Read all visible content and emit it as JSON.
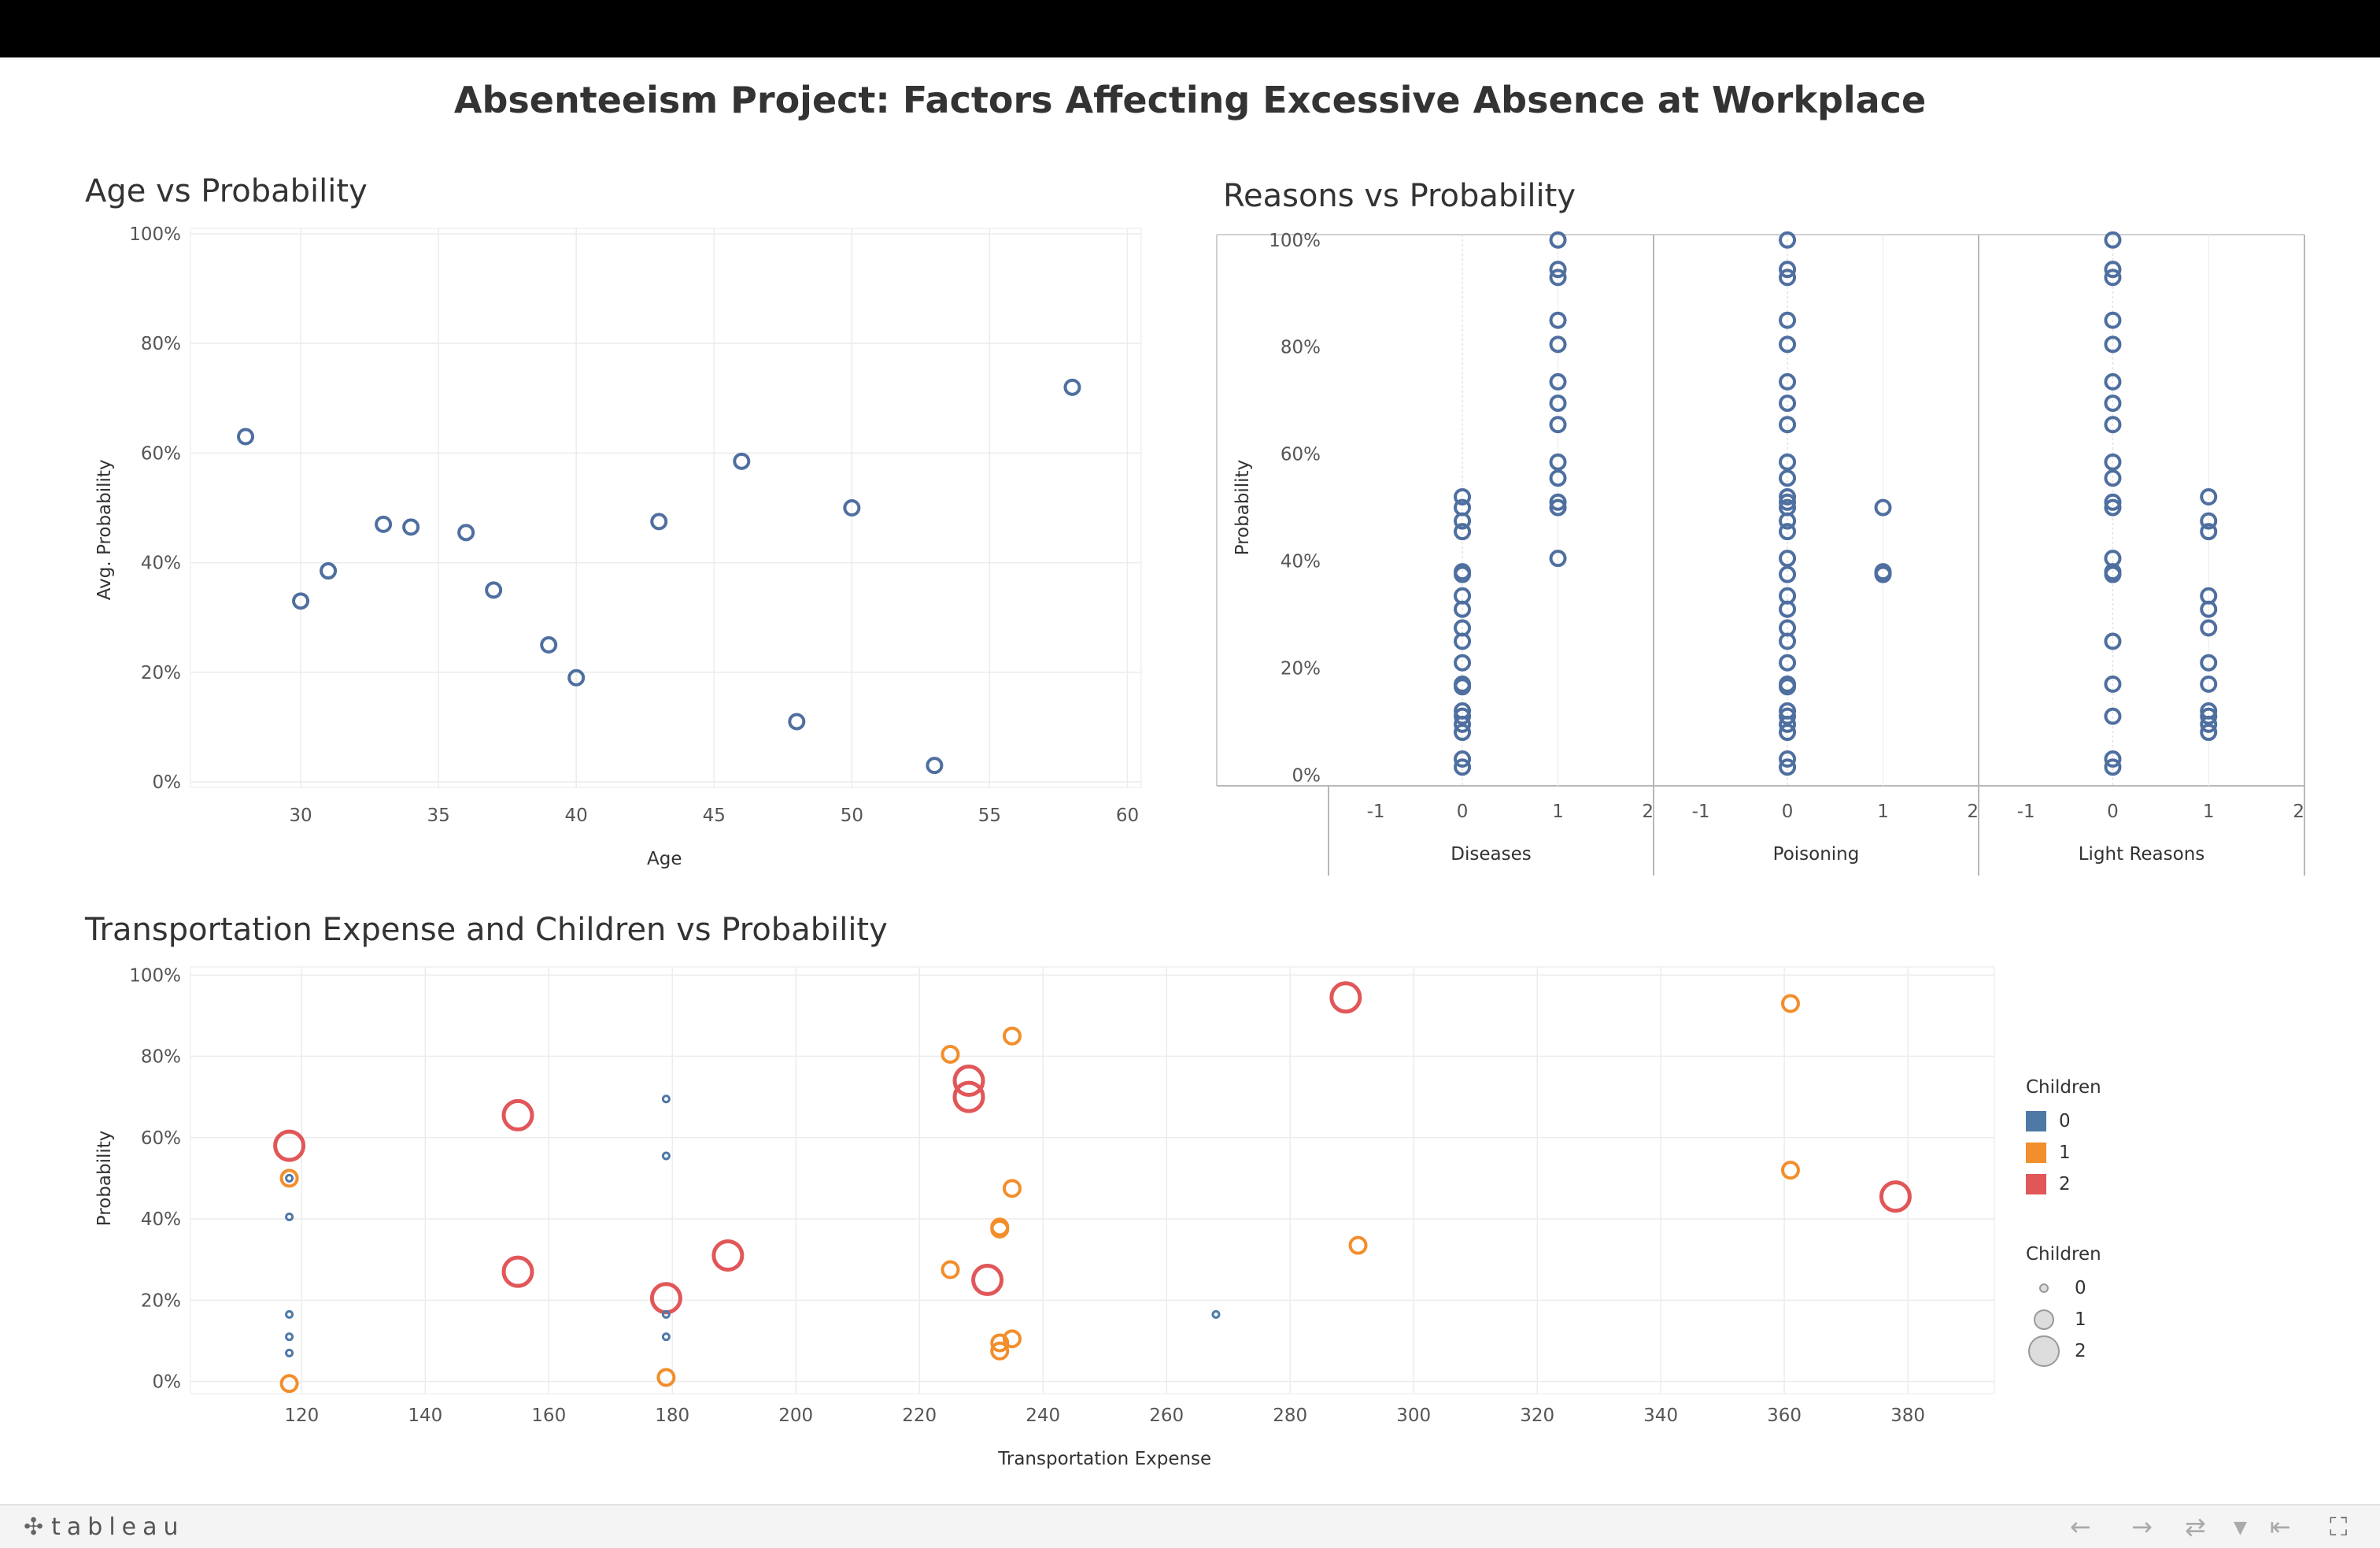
{
  "dashboard_title": "Absenteeism Project: Factors Affecting Excessive Absence at Workplace",
  "footer": {
    "brand": "tableau",
    "brand_icon": "tableau-logo-icon"
  },
  "legend": {
    "color_title": "Children",
    "color_items": [
      {
        "label": "0",
        "color": "#4e79a7"
      },
      {
        "label": "1",
        "color": "#f28e2b"
      },
      {
        "label": "2",
        "color": "#e15759"
      }
    ],
    "size_title": "Children",
    "size_items": [
      {
        "label": "0"
      },
      {
        "label": "1"
      },
      {
        "label": "2"
      }
    ]
  },
  "chart_data": [
    {
      "id": "age",
      "type": "scatter",
      "title": "Age vs Probability",
      "xlabel": "Age",
      "ylabel": "Avg. Probability",
      "xlim": [
        26,
        60.5
      ],
      "ylim": [
        -1,
        101
      ],
      "xticks": [
        30,
        35,
        40,
        45,
        50,
        55,
        60
      ],
      "yticks": [
        0,
        20,
        40,
        60,
        80,
        100
      ],
      "yformat": "percent",
      "grid": true,
      "marker_color": "#4e6f9f",
      "points": [
        {
          "x": 28,
          "y": 63
        },
        {
          "x": 30,
          "y": 33
        },
        {
          "x": 31,
          "y": 38.5
        },
        {
          "x": 33,
          "y": 47
        },
        {
          "x": 34,
          "y": 46.5
        },
        {
          "x": 36,
          "y": 45.5
        },
        {
          "x": 37,
          "y": 35
        },
        {
          "x": 39,
          "y": 25
        },
        {
          "x": 40,
          "y": 19
        },
        {
          "x": 43,
          "y": 47.5
        },
        {
          "x": 46,
          "y": 58.5
        },
        {
          "x": 48,
          "y": 11
        },
        {
          "x": 50,
          "y": 50
        },
        {
          "x": 53,
          "y": 3
        },
        {
          "x": 58,
          "y": 72
        }
      ]
    },
    {
      "id": "reasons",
      "type": "scatter",
      "title": "Reasons vs Probability",
      "ylabel": "Probability",
      "ylim": [
        -2,
        101
      ],
      "yticks": [
        0,
        20,
        40,
        60,
        80,
        100
      ],
      "yformat": "percent",
      "xticks": [
        -1,
        0,
        1,
        2
      ],
      "marker_color": "#4e6f9f",
      "panels": [
        {
          "name": "Diseases",
          "points": [
            {
              "x": 0,
              "y": 1.5
            },
            {
              "x": 0,
              "y": 3
            },
            {
              "x": 0,
              "y": 8
            },
            {
              "x": 0,
              "y": 9.5
            },
            {
              "x": 0,
              "y": 11
            },
            {
              "x": 0,
              "y": 12
            },
            {
              "x": 0,
              "y": 16.5
            },
            {
              "x": 0,
              "y": 17
            },
            {
              "x": 0,
              "y": 21
            },
            {
              "x": 0,
              "y": 25
            },
            {
              "x": 0,
              "y": 27.5
            },
            {
              "x": 0,
              "y": 31
            },
            {
              "x": 0,
              "y": 33.5
            },
            {
              "x": 0,
              "y": 37.5
            },
            {
              "x": 0,
              "y": 38
            },
            {
              "x": 0,
              "y": 45.5
            },
            {
              "x": 0,
              "y": 47.5
            },
            {
              "x": 0,
              "y": 50
            },
            {
              "x": 0,
              "y": 52
            },
            {
              "x": 1,
              "y": 40.5
            },
            {
              "x": 1,
              "y": 50
            },
            {
              "x": 1,
              "y": 51
            },
            {
              "x": 1,
              "y": 55.5
            },
            {
              "x": 1,
              "y": 58.5
            },
            {
              "x": 1,
              "y": 65.5
            },
            {
              "x": 1,
              "y": 69.5
            },
            {
              "x": 1,
              "y": 73.5
            },
            {
              "x": 1,
              "y": 80.5
            },
            {
              "x": 1,
              "y": 85
            },
            {
              "x": 1,
              "y": 93
            },
            {
              "x": 1,
              "y": 94.5
            },
            {
              "x": 1,
              "y": 100
            }
          ]
        },
        {
          "name": "Poisoning",
          "points": [
            {
              "x": 0,
              "y": 1.5
            },
            {
              "x": 0,
              "y": 3
            },
            {
              "x": 0,
              "y": 8
            },
            {
              "x": 0,
              "y": 9.5
            },
            {
              "x": 0,
              "y": 11
            },
            {
              "x": 0,
              "y": 12
            },
            {
              "x": 0,
              "y": 16.5
            },
            {
              "x": 0,
              "y": 17
            },
            {
              "x": 0,
              "y": 21
            },
            {
              "x": 0,
              "y": 25
            },
            {
              "x": 0,
              "y": 27.5
            },
            {
              "x": 0,
              "y": 31
            },
            {
              "x": 0,
              "y": 33.5
            },
            {
              "x": 0,
              "y": 37.5
            },
            {
              "x": 0,
              "y": 40.5
            },
            {
              "x": 0,
              "y": 45.5
            },
            {
              "x": 0,
              "y": 47.5
            },
            {
              "x": 0,
              "y": 50
            },
            {
              "x": 0,
              "y": 51
            },
            {
              "x": 0,
              "y": 52
            },
            {
              "x": 0,
              "y": 55.5
            },
            {
              "x": 0,
              "y": 58.5
            },
            {
              "x": 0,
              "y": 65.5
            },
            {
              "x": 0,
              "y": 69.5
            },
            {
              "x": 0,
              "y": 73.5
            },
            {
              "x": 0,
              "y": 80.5
            },
            {
              "x": 0,
              "y": 85
            },
            {
              "x": 0,
              "y": 93
            },
            {
              "x": 0,
              "y": 94.5
            },
            {
              "x": 0,
              "y": 100
            },
            {
              "x": 1,
              "y": 37.5
            },
            {
              "x": 1,
              "y": 38
            },
            {
              "x": 1,
              "y": 50
            }
          ]
        },
        {
          "name": "Light Reasons",
          "points": [
            {
              "x": 0,
              "y": 1.5
            },
            {
              "x": 0,
              "y": 3
            },
            {
              "x": 0,
              "y": 11
            },
            {
              "x": 0,
              "y": 17
            },
            {
              "x": 0,
              "y": 25
            },
            {
              "x": 0,
              "y": 37.5
            },
            {
              "x": 0,
              "y": 38
            },
            {
              "x": 0,
              "y": 40.5
            },
            {
              "x": 0,
              "y": 50
            },
            {
              "x": 0,
              "y": 51
            },
            {
              "x": 0,
              "y": 55.5
            },
            {
              "x": 0,
              "y": 58.5
            },
            {
              "x": 0,
              "y": 65.5
            },
            {
              "x": 0,
              "y": 69.5
            },
            {
              "x": 0,
              "y": 73.5
            },
            {
              "x": 0,
              "y": 80.5
            },
            {
              "x": 0,
              "y": 85
            },
            {
              "x": 0,
              "y": 93
            },
            {
              "x": 0,
              "y": 94.5
            },
            {
              "x": 0,
              "y": 100
            },
            {
              "x": 1,
              "y": 8
            },
            {
              "x": 1,
              "y": 9.5
            },
            {
              "x": 1,
              "y": 11
            },
            {
              "x": 1,
              "y": 12
            },
            {
              "x": 1,
              "y": 17
            },
            {
              "x": 1,
              "y": 21
            },
            {
              "x": 1,
              "y": 27.5
            },
            {
              "x": 1,
              "y": 31
            },
            {
              "x": 1,
              "y": 33.5
            },
            {
              "x": 1,
              "y": 45.5
            },
            {
              "x": 1,
              "y": 47.5
            },
            {
              "x": 1,
              "y": 52
            }
          ]
        }
      ]
    },
    {
      "id": "transport",
      "type": "scatter",
      "title": "Transportation Expense and Children vs Probability",
      "xlabel": "Transportation Expense",
      "ylabel": "Probability",
      "xlim": [
        102,
        394
      ],
      "ylim": [
        -3,
        102
      ],
      "xticks": [
        120,
        140,
        160,
        180,
        200,
        220,
        240,
        260,
        280,
        300,
        320,
        340,
        360,
        380
      ],
      "yticks": [
        0,
        20,
        40,
        60,
        80,
        100
      ],
      "yformat": "percent",
      "grid": true,
      "encoding": {
        "color": "Children",
        "size": "Children"
      },
      "points": [
        {
          "x": 118,
          "y": 58,
          "children": 2
        },
        {
          "x": 118,
          "y": 50,
          "children": 1
        },
        {
          "x": 118,
          "y": 50,
          "children": 0
        },
        {
          "x": 118,
          "y": 40.5,
          "children": 0
        },
        {
          "x": 118,
          "y": 16.5,
          "children": 0
        },
        {
          "x": 118,
          "y": 11,
          "children": 0
        },
        {
          "x": 118,
          "y": 7,
          "children": 0
        },
        {
          "x": 118,
          "y": -0.5,
          "children": 1
        },
        {
          "x": 155,
          "y": 65.5,
          "children": 2
        },
        {
          "x": 155,
          "y": 27,
          "children": 2
        },
        {
          "x": 179,
          "y": 69.5,
          "children": 0
        },
        {
          "x": 179,
          "y": 55.5,
          "children": 0
        },
        {
          "x": 179,
          "y": 16.5,
          "children": 0
        },
        {
          "x": 179,
          "y": 11,
          "children": 0
        },
        {
          "x": 179,
          "y": 20.5,
          "children": 2
        },
        {
          "x": 179,
          "y": 1,
          "children": 1
        },
        {
          "x": 189,
          "y": 31,
          "children": 2
        },
        {
          "x": 225,
          "y": 80.5,
          "children": 1
        },
        {
          "x": 225,
          "y": 27.5,
          "children": 1
        },
        {
          "x": 228,
          "y": 74,
          "children": 2
        },
        {
          "x": 228,
          "y": 70,
          "children": 2
        },
        {
          "x": 231,
          "y": 25,
          "children": 2
        },
        {
          "x": 233,
          "y": 38,
          "children": 1
        },
        {
          "x": 233,
          "y": 37.5,
          "children": 1
        },
        {
          "x": 233,
          "y": 9.5,
          "children": 1
        },
        {
          "x": 233,
          "y": 7.5,
          "children": 1
        },
        {
          "x": 235,
          "y": 85,
          "children": 1
        },
        {
          "x": 235,
          "y": 47.5,
          "children": 1
        },
        {
          "x": 235,
          "y": 10.5,
          "children": 1
        },
        {
          "x": 268,
          "y": 16.5,
          "children": 0
        },
        {
          "x": 289,
          "y": 94.5,
          "children": 2
        },
        {
          "x": 291,
          "y": 33.5,
          "children": 1
        },
        {
          "x": 361,
          "y": 93,
          "children": 1
        },
        {
          "x": 361,
          "y": 52,
          "children": 1
        },
        {
          "x": 378,
          "y": 45.5,
          "children": 2
        }
      ]
    }
  ]
}
